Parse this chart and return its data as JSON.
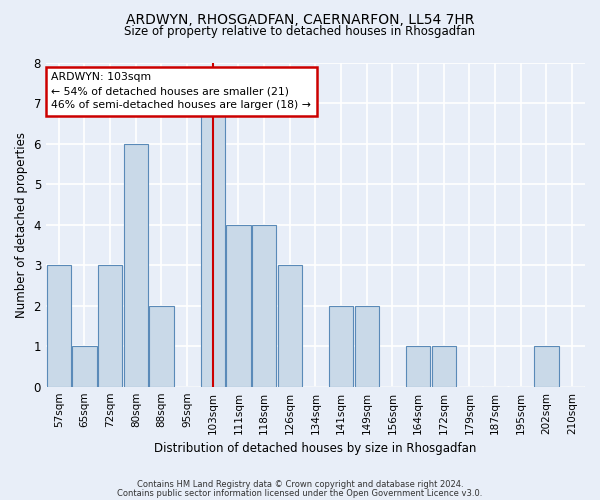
{
  "title1": "ARDWYN, RHOSGADFAN, CAERNARFON, LL54 7HR",
  "title2": "Size of property relative to detached houses in Rhosgadfan",
  "xlabel": "Distribution of detached houses by size in Rhosgadfan",
  "ylabel": "Number of detached properties",
  "categories": [
    "57sqm",
    "65sqm",
    "72sqm",
    "80sqm",
    "88sqm",
    "95sqm",
    "103sqm",
    "111sqm",
    "118sqm",
    "126sqm",
    "134sqm",
    "141sqm",
    "149sqm",
    "156sqm",
    "164sqm",
    "172sqm",
    "179sqm",
    "187sqm",
    "195sqm",
    "202sqm",
    "210sqm"
  ],
  "values": [
    3,
    1,
    3,
    6,
    2,
    0,
    7,
    4,
    4,
    3,
    0,
    2,
    2,
    0,
    1,
    1,
    0,
    0,
    0,
    1,
    0
  ],
  "highlight_index": 6,
  "bar_color": "#c9d9e8",
  "bar_edge_color": "#5a8ab8",
  "highlight_line_color": "#cc0000",
  "annotation_line1": "ARDWYN: 103sqm",
  "annotation_line2": "← 54% of detached houses are smaller (21)",
  "annotation_line3": "46% of semi-detached houses are larger (18) →",
  "annotation_box_color": "#ffffff",
  "annotation_box_edge": "#cc0000",
  "ylim": [
    0,
    8
  ],
  "yticks": [
    0,
    1,
    2,
    3,
    4,
    5,
    6,
    7,
    8
  ],
  "footnote1": "Contains HM Land Registry data © Crown copyright and database right 2024.",
  "footnote2": "Contains public sector information licensed under the Open Government Licence v3.0.",
  "background_color": "#e8eef8",
  "grid_color": "#ffffff"
}
